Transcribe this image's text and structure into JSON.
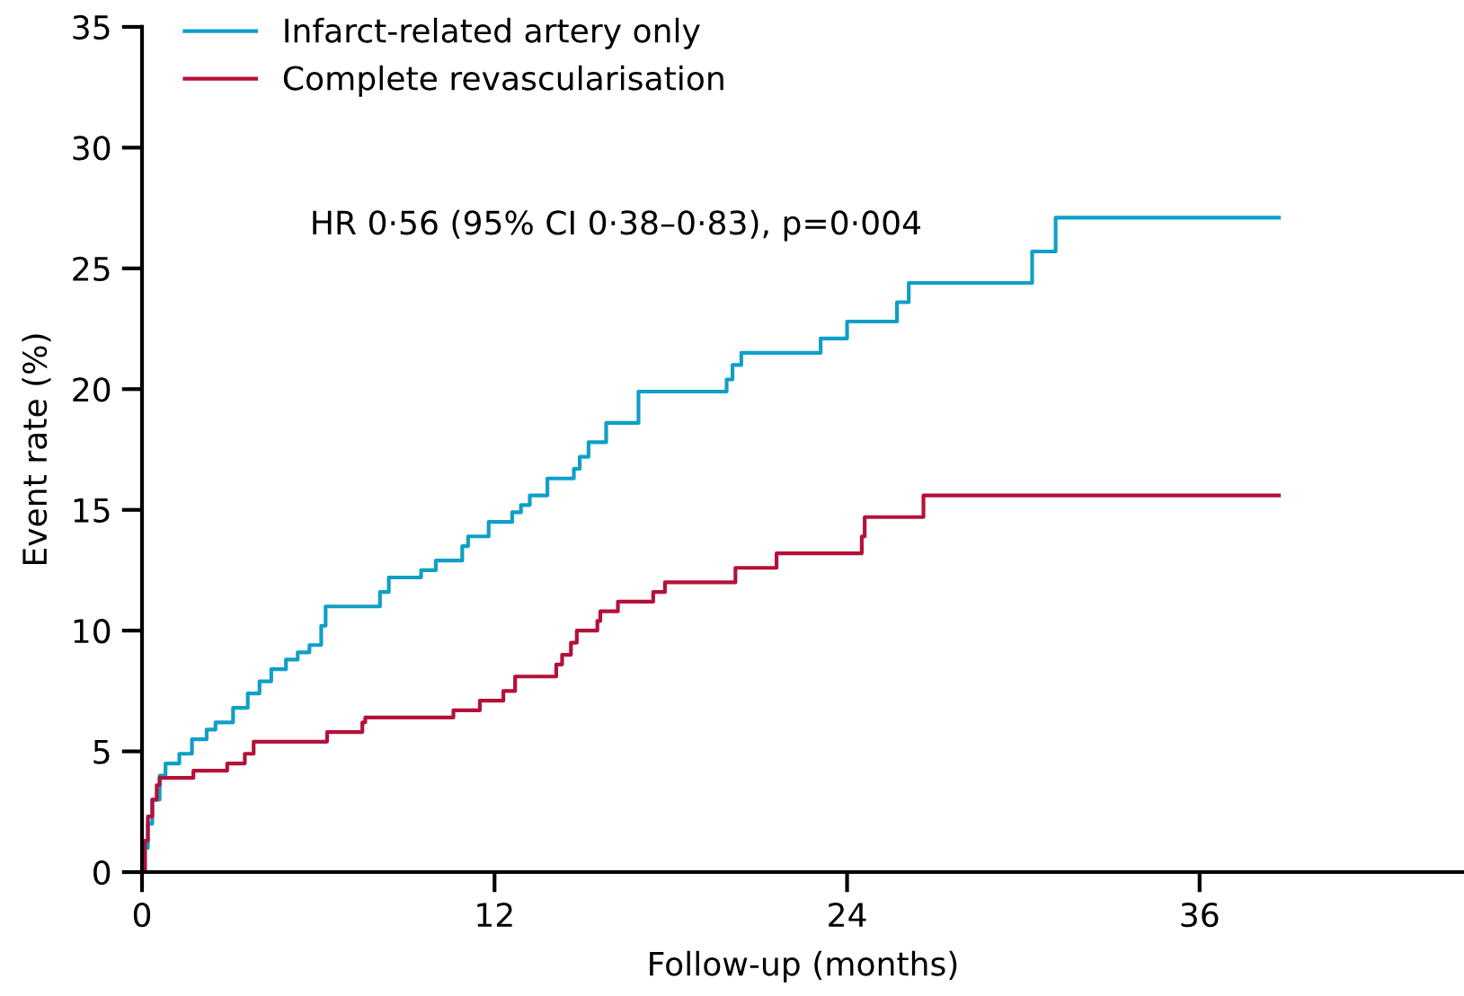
{
  "chart_data": {
    "type": "step",
    "xlabel": "Follow-up (months)",
    "ylabel": "Event rate (%)",
    "annotations": [
      "HR 0·56 (95% CI 0·38–0·83), p=0·004"
    ],
    "xlim": [
      0,
      45
    ],
    "xticks": [
      0,
      12,
      24,
      36
    ],
    "ylim": [
      0,
      35
    ],
    "yticks": [
      0,
      5,
      10,
      15,
      20,
      25,
      30,
      35
    ],
    "grid": false,
    "legend": "top left",
    "line_style": "solid",
    "marker": "none",
    "series": [
      {
        "name": "Infarct-related artery only",
        "color": "#0f9fc7",
        "x": [
          0,
          0.1,
          0.2,
          0.35,
          0.6,
          0.8,
          1.27,
          1.7,
          2.2,
          2.5,
          3.1,
          3.6,
          4.0,
          4.4,
          4.9,
          5.3,
          5.7,
          6.1,
          6.25,
          8.1,
          8.4,
          9.5,
          10.0,
          10.9,
          11.1,
          11.8,
          12.6,
          12.9,
          13.2,
          13.8,
          14.7,
          14.9,
          15.2,
          15.8,
          16.9,
          19.9,
          20.1,
          20.4,
          23.1,
          24.0,
          25.7,
          26.1,
          30.3,
          31.1,
          38.7
        ],
        "values": [
          0,
          1,
          2,
          3,
          4,
          4.5,
          4.9,
          5.5,
          5.9,
          6.2,
          6.8,
          7.4,
          7.9,
          8.4,
          8.8,
          9.1,
          9.4,
          10.2,
          11.0,
          11.6,
          12.2,
          12.5,
          12.9,
          13.5,
          13.9,
          14.5,
          14.9,
          15.2,
          15.6,
          16.3,
          16.7,
          17.2,
          17.8,
          18.6,
          19.9,
          20.4,
          21.0,
          21.5,
          22.1,
          22.8,
          23.6,
          24.4,
          25.7,
          27.1,
          27.1
        ]
      },
      {
        "name": "Complete revascularisation",
        "color": "#b5103a",
        "x": [
          0,
          0.1,
          0.2,
          0.35,
          0.5,
          0.6,
          1.75,
          2.9,
          3.5,
          3.8,
          6.3,
          7.5,
          7.6,
          10.6,
          11.5,
          12.3,
          12.7,
          14.1,
          14.3,
          14.6,
          14.8,
          15.5,
          15.6,
          16.2,
          17.4,
          17.8,
          20.2,
          21.6,
          24.5,
          24.6,
          26.6,
          38.7
        ],
        "values": [
          0,
          1.3,
          2.3,
          3,
          3.6,
          3.9,
          4.2,
          4.5,
          4.9,
          5.4,
          5.8,
          6.2,
          6.4,
          6.7,
          7.1,
          7.5,
          8.1,
          8.6,
          9.0,
          9.5,
          10.0,
          10.4,
          10.8,
          11.2,
          11.6,
          12.0,
          12.6,
          13.2,
          13.9,
          14.7,
          15.6,
          15.6
        ]
      }
    ]
  }
}
